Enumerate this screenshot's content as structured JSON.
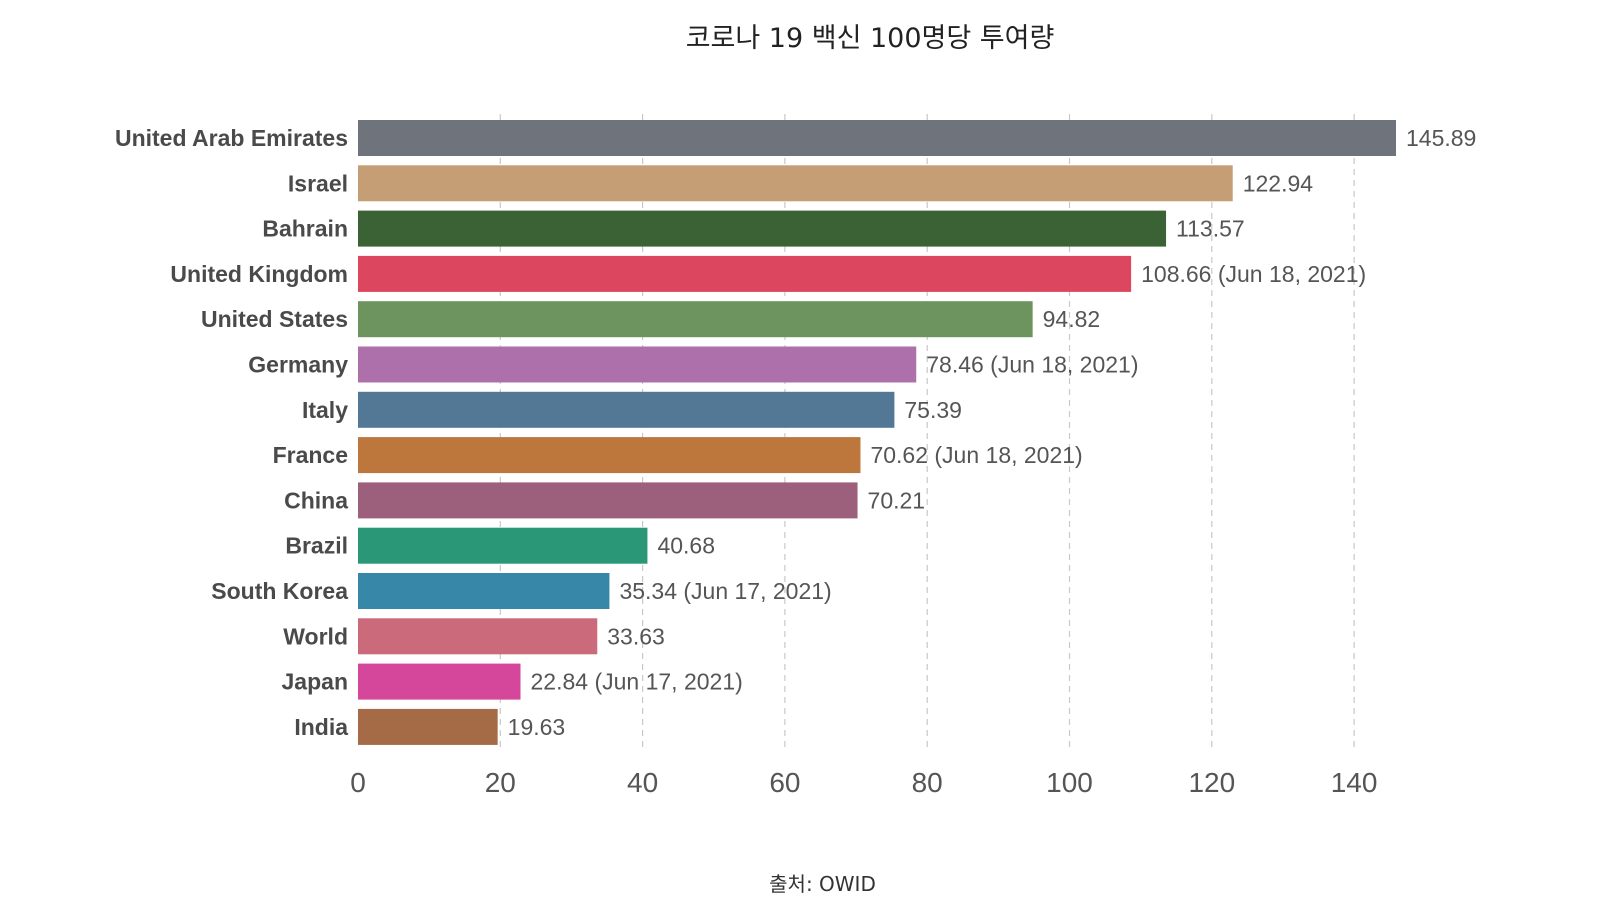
{
  "chart_data": {
    "type": "bar",
    "orientation": "horizontal",
    "title": "코로나 19 백신 100명당 투여량",
    "source": "출처: OWID",
    "xlim": [
      0,
      150
    ],
    "xticks": [
      0,
      20,
      40,
      60,
      80,
      100,
      120,
      140
    ],
    "grid": true,
    "legend": "none",
    "bars": [
      {
        "category": "United Arab Emirates",
        "value": 145.89,
        "label": "145.89",
        "color": "#6f737b"
      },
      {
        "category": "Israel",
        "value": 122.94,
        "label": "122.94",
        "color": "#c59e76"
      },
      {
        "category": "Bahrain",
        "value": 113.57,
        "label": "113.57",
        "color": "#3b6234"
      },
      {
        "category": "United Kingdom",
        "value": 108.66,
        "label": "108.66 (Jun 18, 2021)",
        "color": "#dc465e"
      },
      {
        "category": "United States",
        "value": 94.82,
        "label": "94.82",
        "color": "#6d935f"
      },
      {
        "category": "Germany",
        "value": 78.46,
        "label": "78.46 (Jun 18, 2021)",
        "color": "#ad70aa"
      },
      {
        "category": "Italy",
        "value": 75.39,
        "label": "75.39",
        "color": "#527895"
      },
      {
        "category": "France",
        "value": 70.62,
        "label": "70.62 (Jun 18, 2021)",
        "color": "#bd763c"
      },
      {
        "category": "China",
        "value": 70.21,
        "label": "70.21",
        "color": "#9c607c"
      },
      {
        "category": "Brazil",
        "value": 40.68,
        "label": "40.68",
        "color": "#2a9877"
      },
      {
        "category": "South Korea",
        "value": 35.34,
        "label": "35.34 (Jun 17, 2021)",
        "color": "#3788a8"
      },
      {
        "category": "World",
        "value": 33.63,
        "label": "33.63",
        "color": "#cb6a7b"
      },
      {
        "category": "Japan",
        "value": 22.84,
        "label": "22.84 (Jun 17, 2021)",
        "color": "#d5479a"
      },
      {
        "category": "India",
        "value": 19.63,
        "label": "19.63",
        "color": "#a56a46"
      }
    ]
  }
}
